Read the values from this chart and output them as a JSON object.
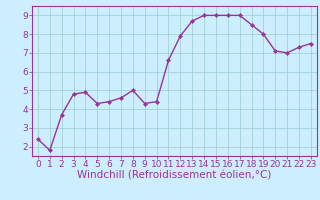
{
  "x": [
    0,
    1,
    2,
    3,
    4,
    5,
    6,
    7,
    8,
    9,
    10,
    11,
    12,
    13,
    14,
    15,
    16,
    17,
    18,
    19,
    20,
    21,
    22,
    23
  ],
  "y": [
    2.4,
    1.8,
    3.7,
    4.8,
    4.9,
    4.3,
    4.4,
    4.6,
    5.0,
    4.3,
    4.4,
    6.6,
    7.9,
    8.7,
    9.0,
    9.0,
    9.0,
    9.0,
    8.5,
    8.0,
    7.1,
    7.0,
    7.3,
    7.5
  ],
  "line_color": "#993399",
  "marker_color": "#993399",
  "bg_color": "#cceeff",
  "grid_color": "#99cccc",
  "xlabel": "Windchill (Refroidissement éolien,°C)",
  "xlabel_color": "#993399",
  "xlim": [
    -0.5,
    23.5
  ],
  "ylim": [
    1.5,
    9.5
  ],
  "yticks": [
    2,
    3,
    4,
    5,
    6,
    7,
    8,
    9
  ],
  "xticks": [
    0,
    1,
    2,
    3,
    4,
    5,
    6,
    7,
    8,
    9,
    10,
    11,
    12,
    13,
    14,
    15,
    16,
    17,
    18,
    19,
    20,
    21,
    22,
    23
  ],
  "tick_color": "#993399",
  "tick_label_color": "#993399",
  "spine_color": "#993399",
  "font_size": 6.5,
  "xlabel_fontsize": 7.5
}
